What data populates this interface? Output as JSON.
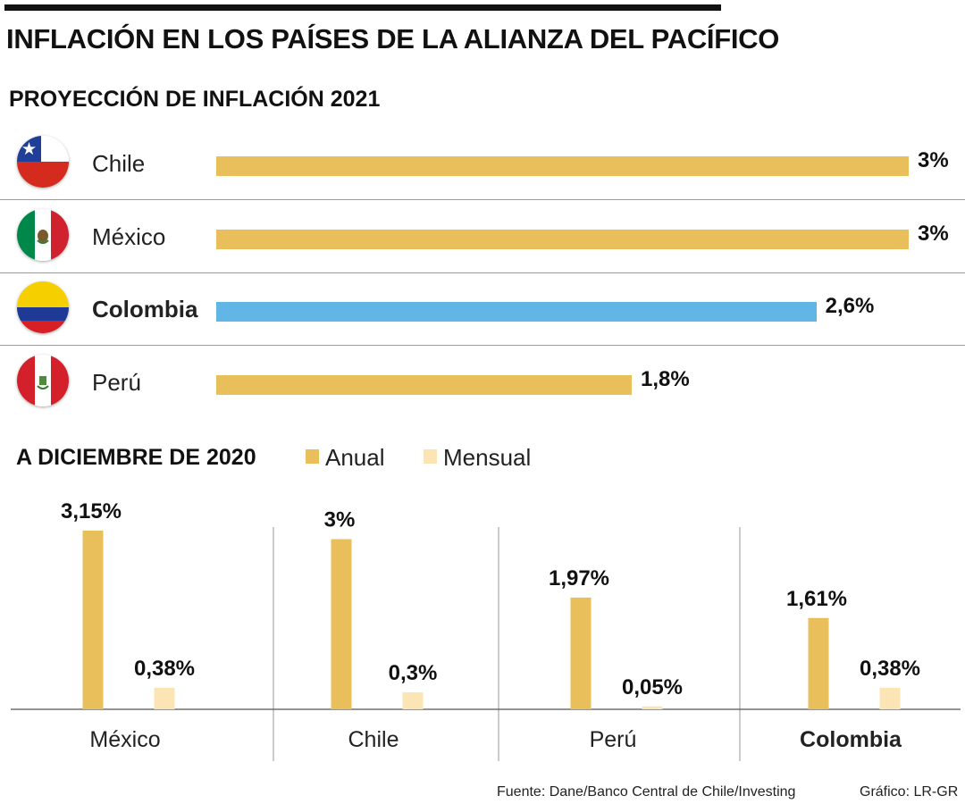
{
  "title": "INFLACIÓN EN LOS PAÍSES DE LA ALIANZA DEL PACÍFICO",
  "colors": {
    "annual": "#E8BF5A",
    "monthly": "#FBE5B4",
    "highlight": "#62B6E6"
  },
  "chart_data": [
    {
      "type": "bar",
      "orientation": "horizontal",
      "title": "PROYECCIÓN DE INFLACIÓN 2021",
      "categories": [
        "Chile",
        "México",
        "Colombia",
        "Perú"
      ],
      "values": [
        3,
        3,
        2.6,
        1.8
      ],
      "value_labels": [
        "3%",
        "3%",
        "2,6%",
        "1,8%"
      ],
      "highlight": "Colombia",
      "flags": [
        "chile-flag-icon",
        "mexico-flag-icon",
        "colombia-flag-icon",
        "peru-flag-icon"
      ],
      "xlim": [
        0,
        3
      ]
    },
    {
      "type": "bar",
      "title": "A DICIEMBRE DE 2020",
      "categories": [
        "México",
        "Chile",
        "Perú",
        "Colombia"
      ],
      "bold_category": "Colombia",
      "series": [
        {
          "name": "Anual",
          "values": [
            3.15,
            3,
            1.97,
            1.61
          ],
          "labels": [
            "3,15%",
            "3%",
            "1,97%",
            "1,61%"
          ]
        },
        {
          "name": "Mensual",
          "values": [
            0.38,
            0.3,
            0.05,
            0.38
          ],
          "labels": [
            "0,38%",
            "0,3%",
            "0,05%",
            "0,38%"
          ]
        }
      ],
      "legend_position": "top",
      "ylim": [
        0,
        3.15
      ]
    }
  ],
  "footer": {
    "source": "Fuente: Dane/Banco Central de Chile/Investing",
    "credit": "Gráfico: LR-GR"
  }
}
